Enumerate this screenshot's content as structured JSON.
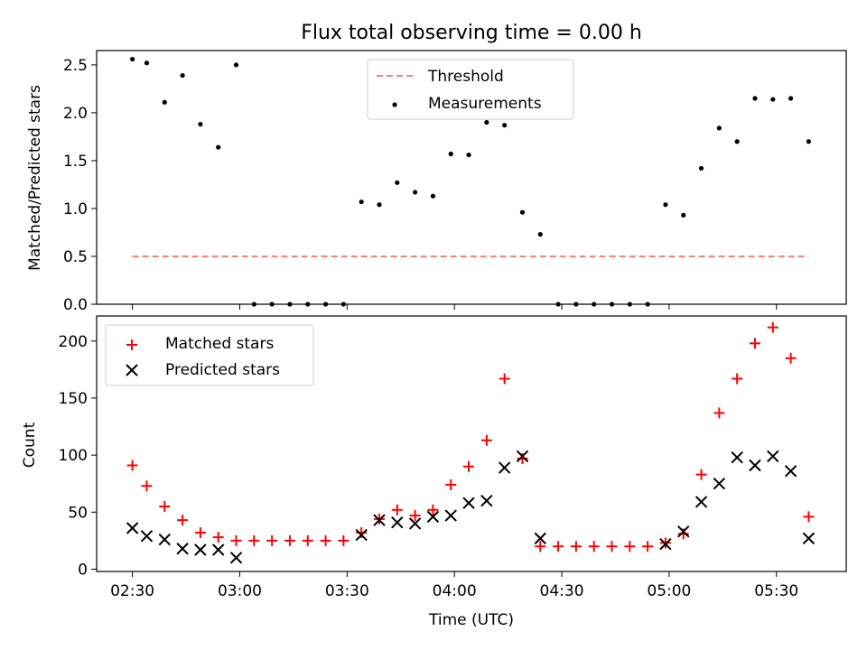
{
  "figure": {
    "title": "Flux total observing time = 0.00 h",
    "x_label": "Time (UTC)"
  },
  "chart_data": [
    {
      "type": "scatter",
      "ylabel": "Matched/Predicted stars",
      "ylim": [
        0,
        2.65
      ],
      "yticks": [
        0.0,
        0.5,
        1.0,
        1.5,
        2.0,
        2.5
      ],
      "xlim_minutes": [
        -10,
        199.5
      ],
      "xticks_minutes": [
        0,
        30,
        60,
        90,
        120,
        150,
        180
      ],
      "legend_position": "upper center",
      "threshold": {
        "name": "Threshold",
        "color": "#ff7f7f",
        "x_range": [
          "02:30",
          "05:39"
        ],
        "y": 0.5
      },
      "series": [
        {
          "name": "Measurements",
          "color": "#000000",
          "x": [
            "02:30",
            "02:34",
            "02:39",
            "02:44",
            "02:49",
            "02:54",
            "02:59",
            "03:04",
            "03:09",
            "03:14",
            "03:19",
            "03:24",
            "03:29",
            "03:34",
            "03:39",
            "03:44",
            "03:49",
            "03:54",
            "03:59",
            "04:04",
            "04:09",
            "04:14",
            "04:19",
            "04:24",
            "04:29",
            "04:34",
            "04:39",
            "04:44",
            "04:49",
            "04:54",
            "04:59",
            "05:04",
            "05:09",
            "05:14",
            "05:19",
            "05:24",
            "05:29",
            "05:34",
            "05:39"
          ],
          "y": [
            2.56,
            2.52,
            2.11,
            2.39,
            1.88,
            1.64,
            2.5,
            0,
            0,
            0,
            0,
            0,
            0,
            1.07,
            1.04,
            1.27,
            1.17,
            1.13,
            1.57,
            1.56,
            1.9,
            1.87,
            0.96,
            0.73,
            0,
            0,
            0,
            0,
            0,
            0,
            1.04,
            0.93,
            1.42,
            1.84,
            1.7,
            2.15,
            2.14,
            2.15,
            1.7
          ]
        }
      ]
    },
    {
      "type": "scatter",
      "ylabel": "Count",
      "ylim": [
        -2,
        222
      ],
      "yticks": [
        0,
        50,
        100,
        150,
        200
      ],
      "xlim_minutes": [
        -10,
        199.5
      ],
      "xticks": [
        "02:30",
        "03:00",
        "03:30",
        "04:00",
        "04:30",
        "05:00",
        "05:30"
      ],
      "xticks_minutes": [
        0,
        30,
        60,
        90,
        120,
        150,
        180
      ],
      "legend_position": "upper left",
      "series": [
        {
          "name": "Matched stars",
          "marker": "plus",
          "color": "#ff0000",
          "x": [
            "02:30",
            "02:34",
            "02:39",
            "02:44",
            "02:49",
            "02:54",
            "02:59",
            "03:04",
            "03:09",
            "03:14",
            "03:19",
            "03:24",
            "03:29",
            "03:34",
            "03:39",
            "03:44",
            "03:49",
            "03:54",
            "03:59",
            "04:04",
            "04:09",
            "04:14",
            "04:19",
            "04:24",
            "04:29",
            "04:34",
            "04:39",
            "04:44",
            "04:49",
            "04:54",
            "04:59",
            "05:04",
            "05:09",
            "05:14",
            "05:19",
            "05:24",
            "05:29",
            "05:34",
            "05:39"
          ],
          "y": [
            91,
            73,
            55,
            43,
            32,
            28,
            25,
            25,
            25,
            25,
            25,
            25,
            25,
            32,
            44,
            52,
            47,
            52,
            74,
            90,
            113,
            167,
            97,
            20,
            20,
            20,
            20,
            20,
            20,
            20,
            23,
            31,
            83,
            137,
            167,
            198,
            212,
            185,
            46
          ]
        },
        {
          "name": "Predicted stars",
          "marker": "x",
          "color": "#000000",
          "x": [
            "02:30",
            "02:34",
            "02:39",
            "02:44",
            "02:49",
            "02:54",
            "02:59",
            "03:34",
            "03:39",
            "03:44",
            "03:49",
            "03:54",
            "03:59",
            "04:04",
            "04:09",
            "04:14",
            "04:19",
            "04:24",
            "04:59",
            "05:04",
            "05:09",
            "05:14",
            "05:19",
            "05:24",
            "05:29",
            "05:34",
            "05:39"
          ],
          "y": [
            36,
            29,
            26,
            18,
            17,
            17,
            10,
            30,
            43,
            41,
            40,
            46,
            47,
            58,
            60,
            89,
            99,
            27,
            22,
            33,
            59,
            75,
            98,
            91,
            99,
            86,
            27
          ]
        }
      ]
    }
  ]
}
